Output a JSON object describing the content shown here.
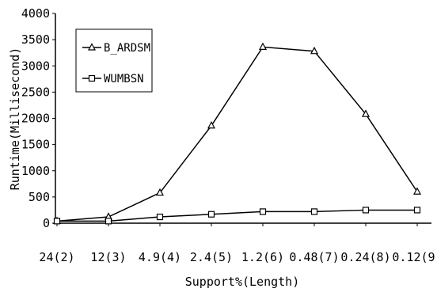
{
  "chart_data": {
    "type": "line",
    "title": "",
    "xlabel": "Support%(Length)",
    "ylabel": "Runtime(Millisecond)",
    "categories": [
      "24(2)",
      "12(3)",
      "4.9(4)",
      "2.4(5)",
      "1.2(6)",
      "0.48(7)",
      "0.24(8)",
      "0.12(9)"
    ],
    "ylim": [
      0,
      4000
    ],
    "yticks": [
      "0",
      "500",
      "1000",
      "1500",
      "2000",
      "2500",
      "3000",
      "3500",
      "4000"
    ],
    "grid": false,
    "legend_position": "top-left",
    "series": [
      {
        "name": "B_ARDSM",
        "marker": "triangle",
        "values": [
          40,
          120,
          580,
          1860,
          3360,
          3280,
          2080,
          600
        ]
      },
      {
        "name": "WUMBSN",
        "marker": "square",
        "values": [
          40,
          40,
          120,
          170,
          220,
          220,
          250,
          250
        ]
      }
    ]
  }
}
